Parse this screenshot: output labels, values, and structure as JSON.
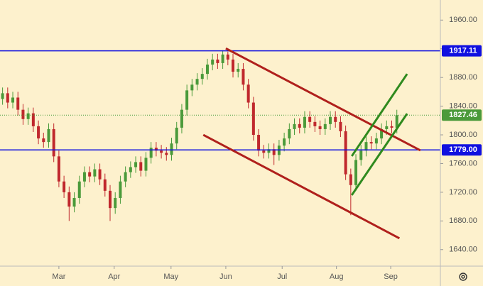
{
  "chart_data": {
    "type": "candlestick",
    "open": [
      1850,
      1858,
      1845,
      1852,
      1835,
      1822,
      1830,
      1812,
      1795,
      1790,
      1808,
      1770,
      1735,
      1720,
      1700,
      1712,
      1735,
      1748,
      1742,
      1752,
      1738,
      1722,
      1698,
      1712,
      1735,
      1748,
      1755,
      1762,
      1750,
      1768,
      1782,
      1778,
      1775,
      1772,
      1788,
      1810,
      1835,
      1862,
      1870,
      1878,
      1885,
      1898,
      1905,
      1900,
      1912,
      1905,
      1888,
      1892,
      1870,
      1845,
      1800,
      1778,
      1775,
      1780,
      1772,
      1785,
      1795,
      1808,
      1815,
      1810,
      1825,
      1818,
      1812,
      1808,
      1815,
      1825,
      1818,
      1805,
      1745,
      1730,
      1765,
      1778,
      1790,
      1788,
      1795,
      1808,
      1812,
      1810
    ],
    "high": [
      1866,
      1866,
      1860,
      1860,
      1843,
      1838,
      1838,
      1820,
      1803,
      1816,
      1816,
      1778,
      1743,
      1728,
      1720,
      1743,
      1756,
      1756,
      1760,
      1760,
      1746,
      1730,
      1720,
      1743,
      1756,
      1763,
      1770,
      1770,
      1776,
      1790,
      1790,
      1786,
      1783,
      1796,
      1818,
      1843,
      1870,
      1878,
      1886,
      1893,
      1906,
      1913,
      1913,
      1918,
      1916,
      1913,
      1900,
      1900,
      1878,
      1853,
      1808,
      1786,
      1788,
      1788,
      1793,
      1803,
      1816,
      1823,
      1823,
      1833,
      1833,
      1826,
      1820,
      1823,
      1833,
      1833,
      1826,
      1813,
      1753,
      1773,
      1786,
      1798,
      1798,
      1803,
      1816,
      1820,
      1820,
      1835
    ],
    "low": [
      1842,
      1837,
      1837,
      1827,
      1814,
      1814,
      1804,
      1787,
      1782,
      1782,
      1762,
      1727,
      1712,
      1680,
      1692,
      1704,
      1727,
      1734,
      1734,
      1730,
      1714,
      1680,
      1690,
      1704,
      1727,
      1740,
      1747,
      1742,
      1742,
      1760,
      1770,
      1767,
      1764,
      1764,
      1780,
      1802,
      1827,
      1854,
      1862,
      1870,
      1877,
      1890,
      1892,
      1892,
      1897,
      1880,
      1880,
      1862,
      1837,
      1792,
      1770,
      1767,
      1767,
      1758,
      1764,
      1777,
      1787,
      1800,
      1802,
      1802,
      1810,
      1804,
      1800,
      1800,
      1807,
      1810,
      1797,
      1737,
      1688,
      1722,
      1757,
      1770,
      1780,
      1780,
      1787,
      1800,
      1802,
      1802
    ],
    "close": [
      1858,
      1845,
      1852,
      1835,
      1822,
      1830,
      1812,
      1795,
      1790,
      1808,
      1770,
      1735,
      1720,
      1700,
      1712,
      1735,
      1748,
      1742,
      1752,
      1738,
      1722,
      1698,
      1712,
      1735,
      1748,
      1755,
      1762,
      1750,
      1768,
      1782,
      1778,
      1775,
      1772,
      1788,
      1810,
      1835,
      1862,
      1870,
      1878,
      1885,
      1898,
      1905,
      1900,
      1912,
      1905,
      1888,
      1892,
      1870,
      1845,
      1800,
      1778,
      1775,
      1780,
      1772,
      1785,
      1795,
      1808,
      1815,
      1810,
      1825,
      1818,
      1812,
      1808,
      1815,
      1825,
      1818,
      1805,
      1745,
      1730,
      1765,
      1778,
      1790,
      1788,
      1795,
      1808,
      1812,
      1810,
      1827.46
    ],
    "up_color": "#4a9a3a",
    "down_color": "#c0282d",
    "price_line_color": "#4a9a3a",
    "xlim": [
      -0.5,
      85.5
    ],
    "xticks": [
      {
        "value": 11.0,
        "label": "Mar"
      },
      {
        "value": 21.8,
        "label": "Apr"
      },
      {
        "value": 32.9,
        "label": "May"
      },
      {
        "value": 43.6,
        "label": "Jun"
      },
      {
        "value": 54.6,
        "label": "Jul"
      },
      {
        "value": 65.2,
        "label": "Aug"
      },
      {
        "value": 75.8,
        "label": "Sep"
      }
    ],
    "ylim": [
      1617,
      1988
    ],
    "yticks": [
      {
        "value": 1640,
        "label": "1640.00"
      },
      {
        "value": 1680,
        "label": "1680.00"
      },
      {
        "value": 1720,
        "label": "1720.00"
      },
      {
        "value": 1760,
        "label": "1760.00"
      },
      {
        "value": 1800,
        "label": "1800.00"
      },
      {
        "value": 1840,
        "label": "1840.00"
      },
      {
        "value": 1880,
        "label": "1880.00"
      },
      {
        "value": 1920,
        "label": "1920.00"
      },
      {
        "value": 1960,
        "label": "1960.00"
      }
    ],
    "levels": [
      {
        "value": 1917.11,
        "color": "#1010e0"
      },
      {
        "value": 1779,
        "label": "1779.00",
        "color": "#1010e0"
      }
    ],
    "trend_lines": [
      {
        "x": [
          43.6,
          81.6
        ],
        "y": [
          1920.5,
          1778.3
        ],
        "color": "#b0201c"
      },
      {
        "x": [
          39.2,
          77.5
        ],
        "y": [
          1800,
          1655.8
        ],
        "color": "#b0201c"
      },
      {
        "x": [
          68.2,
          79.0
        ],
        "y": [
          1770.4,
          1884.9
        ],
        "color": "#2f8a1e"
      },
      {
        "x": [
          68.2,
          79.0
        ],
        "y": [
          1716,
          1829.6
        ],
        "color": "#2f8a1e"
      }
    ]
  }
}
